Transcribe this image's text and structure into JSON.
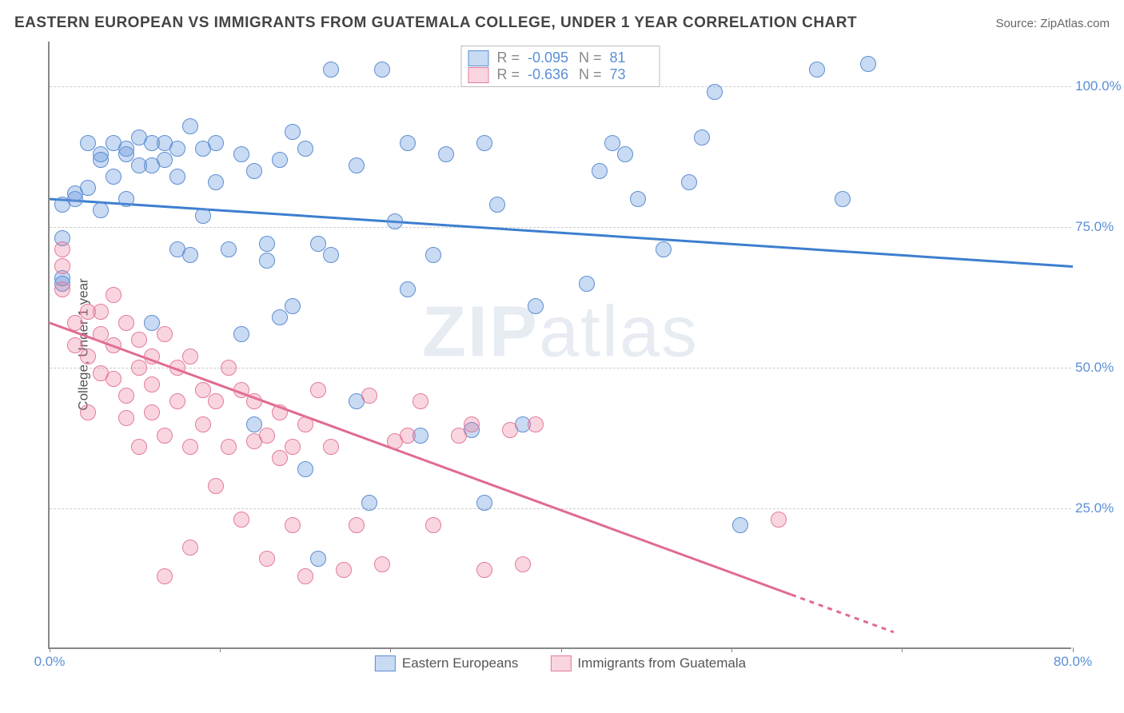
{
  "title": "EASTERN EUROPEAN VS IMMIGRANTS FROM GUATEMALA COLLEGE, UNDER 1 YEAR CORRELATION CHART",
  "source": "Source: ZipAtlas.com",
  "watermark": {
    "part1": "ZIP",
    "part2": "atlas"
  },
  "chart": {
    "type": "scatter",
    "y_axis_label": "College, Under 1 year",
    "background_color": "#ffffff",
    "grid_color": "#cccccc",
    "axis_color": "#888888",
    "tick_label_color": "#5b8fd6",
    "xlim": [
      0,
      80
    ],
    "ylim": [
      0,
      108
    ],
    "y_ticks": [
      25,
      50,
      75,
      100
    ],
    "y_tick_labels": [
      "25.0%",
      "50.0%",
      "75.0%",
      "100.0%"
    ],
    "x_tick_positions": [
      0,
      13.3,
      26.6,
      40,
      53.3,
      66.6,
      80
    ],
    "x_tick_labels_shown": {
      "0": "0.0%",
      "80": "80.0%"
    },
    "marker_radius": 10,
    "series": [
      {
        "name": "Eastern Europeans",
        "color_fill": "rgba(100,150,220,0.35)",
        "color_stroke": "#5d8fd1",
        "R": "-0.095",
        "N": "81",
        "trend": {
          "x1": 0,
          "y1": 80,
          "x2": 80,
          "y2": 68,
          "color": "#3d7ecf",
          "dash_from_x": null
        },
        "points": [
          [
            1,
            79
          ],
          [
            1,
            73
          ],
          [
            1,
            66
          ],
          [
            1,
            65
          ],
          [
            2,
            80
          ],
          [
            2,
            81
          ],
          [
            3,
            82
          ],
          [
            3,
            90
          ],
          [
            4,
            88
          ],
          [
            4,
            87
          ],
          [
            4,
            78
          ],
          [
            5,
            84
          ],
          [
            5,
            90
          ],
          [
            6,
            89
          ],
          [
            6,
            88
          ],
          [
            6,
            80
          ],
          [
            7,
            91
          ],
          [
            7,
            86
          ],
          [
            8,
            86
          ],
          [
            8,
            90
          ],
          [
            8,
            58
          ],
          [
            9,
            90
          ],
          [
            9,
            87
          ],
          [
            10,
            84
          ],
          [
            10,
            71
          ],
          [
            10,
            89
          ],
          [
            11,
            93
          ],
          [
            11,
            70
          ],
          [
            12,
            89
          ],
          [
            12,
            77
          ],
          [
            13,
            83
          ],
          [
            13,
            90
          ],
          [
            14,
            71
          ],
          [
            15,
            88
          ],
          [
            15,
            56
          ],
          [
            16,
            85
          ],
          [
            16,
            40
          ],
          [
            17,
            72
          ],
          [
            17,
            69
          ],
          [
            18,
            87
          ],
          [
            18,
            59
          ],
          [
            19,
            61
          ],
          [
            19,
            92
          ],
          [
            20,
            89
          ],
          [
            20,
            32
          ],
          [
            21,
            72
          ],
          [
            21,
            16
          ],
          [
            22,
            103
          ],
          [
            22,
            70
          ],
          [
            24,
            86
          ],
          [
            24,
            44
          ],
          [
            25,
            26
          ],
          [
            26,
            103
          ],
          [
            27,
            76
          ],
          [
            28,
            90
          ],
          [
            28,
            64
          ],
          [
            29,
            38
          ],
          [
            30,
            70
          ],
          [
            31,
            88
          ],
          [
            33,
            103
          ],
          [
            33,
            39
          ],
          [
            34,
            26
          ],
          [
            34,
            90
          ],
          [
            35,
            79
          ],
          [
            37,
            40
          ],
          [
            38,
            61
          ],
          [
            42,
            65
          ],
          [
            43,
            85
          ],
          [
            44,
            90
          ],
          [
            45,
            88
          ],
          [
            46,
            80
          ],
          [
            48,
            71
          ],
          [
            50,
            83
          ],
          [
            51,
            91
          ],
          [
            52,
            99
          ],
          [
            54,
            22
          ],
          [
            60,
            103
          ],
          [
            62,
            80
          ],
          [
            64,
            104
          ]
        ]
      },
      {
        "name": "Immigrants from Guatemala",
        "color_fill": "rgba(235,120,150,0.30)",
        "color_stroke": "#e47a9a",
        "R": "-0.636",
        "N": "73",
        "trend": {
          "x1": 0,
          "y1": 58,
          "x2": 66,
          "y2": 3,
          "color": "#e06a8e",
          "dash_from_x": 58
        },
        "points": [
          [
            1,
            71
          ],
          [
            1,
            68
          ],
          [
            1,
            64
          ],
          [
            2,
            54
          ],
          [
            2,
            58
          ],
          [
            3,
            60
          ],
          [
            3,
            52
          ],
          [
            3,
            42
          ],
          [
            4,
            56
          ],
          [
            4,
            60
          ],
          [
            4,
            49
          ],
          [
            5,
            54
          ],
          [
            5,
            48
          ],
          [
            5,
            63
          ],
          [
            6,
            58
          ],
          [
            6,
            45
          ],
          [
            6,
            41
          ],
          [
            7,
            55
          ],
          [
            7,
            50
          ],
          [
            7,
            36
          ],
          [
            8,
            52
          ],
          [
            8,
            47
          ],
          [
            8,
            42
          ],
          [
            9,
            56
          ],
          [
            9,
            38
          ],
          [
            9,
            13
          ],
          [
            10,
            50
          ],
          [
            10,
            44
          ],
          [
            11,
            52
          ],
          [
            11,
            36
          ],
          [
            11,
            18
          ],
          [
            12,
            46
          ],
          [
            12,
            40
          ],
          [
            13,
            44
          ],
          [
            13,
            29
          ],
          [
            14,
            50
          ],
          [
            14,
            36
          ],
          [
            15,
            46
          ],
          [
            15,
            23
          ],
          [
            16,
            37
          ],
          [
            16,
            44
          ],
          [
            17,
            38
          ],
          [
            17,
            16
          ],
          [
            18,
            34
          ],
          [
            18,
            42
          ],
          [
            19,
            36
          ],
          [
            19,
            22
          ],
          [
            20,
            40
          ],
          [
            20,
            13
          ],
          [
            21,
            46
          ],
          [
            22,
            36
          ],
          [
            23,
            14
          ],
          [
            24,
            22
          ],
          [
            25,
            45
          ],
          [
            26,
            15
          ],
          [
            27,
            37
          ],
          [
            28,
            38
          ],
          [
            29,
            44
          ],
          [
            30,
            22
          ],
          [
            32,
            38
          ],
          [
            33,
            40
          ],
          [
            34,
            14
          ],
          [
            36,
            39
          ],
          [
            37,
            15
          ],
          [
            38,
            40
          ],
          [
            57,
            23
          ]
        ]
      }
    ],
    "legend_top_labels": {
      "R": "R =",
      "N": "N ="
    },
    "legend_bottom": [
      "Eastern Europeans",
      "Immigrants from Guatemala"
    ]
  }
}
